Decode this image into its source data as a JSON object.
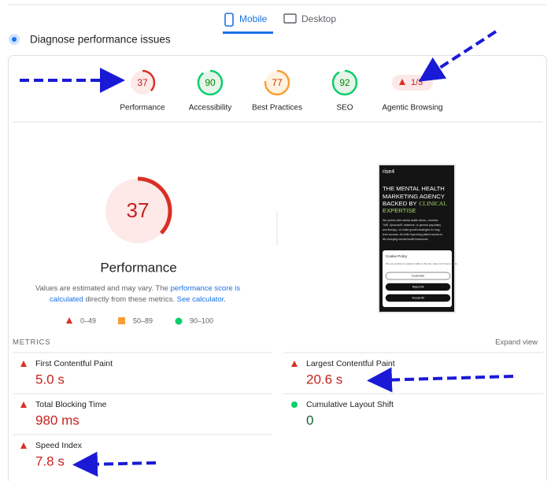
{
  "tabs": [
    "Mobile",
    "Desktop"
  ],
  "header": {
    "title": "Diagnose performance issues"
  },
  "scores": [
    {
      "label": "Performance",
      "score": 37
    },
    {
      "label": "Accessibility",
      "score": 90
    },
    {
      "label": "Best Practices",
      "score": 77
    },
    {
      "label": "SEO",
      "score": 92
    }
  ],
  "agentic": {
    "label": "Agentic Browsing",
    "text": "1/3"
  },
  "main": {
    "score": 37,
    "title": "Performance",
    "note": [
      "Values are estimated and may vary. The ",
      "performance score is",
      "calculated",
      " directly from these metrics. ",
      "See calculator",
      "."
    ],
    "legend": [
      "0–49",
      "50–89",
      "90–100"
    ]
  },
  "preview": {
    "brand": "rise4",
    "headline": [
      "THE MENTAL HEALTH",
      "MARKETING AGENCY",
      "BACKED BY"
    ],
    "accent": [
      "CLINICAL",
      "EXPERTISE"
    ],
    "body": [
      "We partner with mental health clinics—whether",
      "TMS, Spravato®, ketamine, or general psychiatry",
      "and therapy—to make growth strategies for long-",
      "term success. All while improving patient access to",
      "life-changing mental health treatments."
    ],
    "cookie_title": "Cookie Policy",
    "cookie_text": "We use cookies to analyze traffic to this site. View our Privacy Policy.",
    "buttons": [
      "Customize",
      "Reject All",
      "Accept All"
    ]
  },
  "metrics_header": {
    "title": "METRICS",
    "expand": "Expand view"
  },
  "metrics": [
    {
      "name": "First Contentful Paint",
      "value": "5.0 s",
      "rating": "fail"
    },
    {
      "name": "Largest Contentful Paint",
      "value": "20.6 s",
      "rating": "fail"
    },
    {
      "name": "Total Blocking Time",
      "value": "980 ms",
      "rating": "fail"
    },
    {
      "name": "Cumulative Layout Shift",
      "value": "0",
      "rating": "pass"
    },
    {
      "name": "Speed Index",
      "value": "7.8 s",
      "rating": "fail"
    }
  ]
}
